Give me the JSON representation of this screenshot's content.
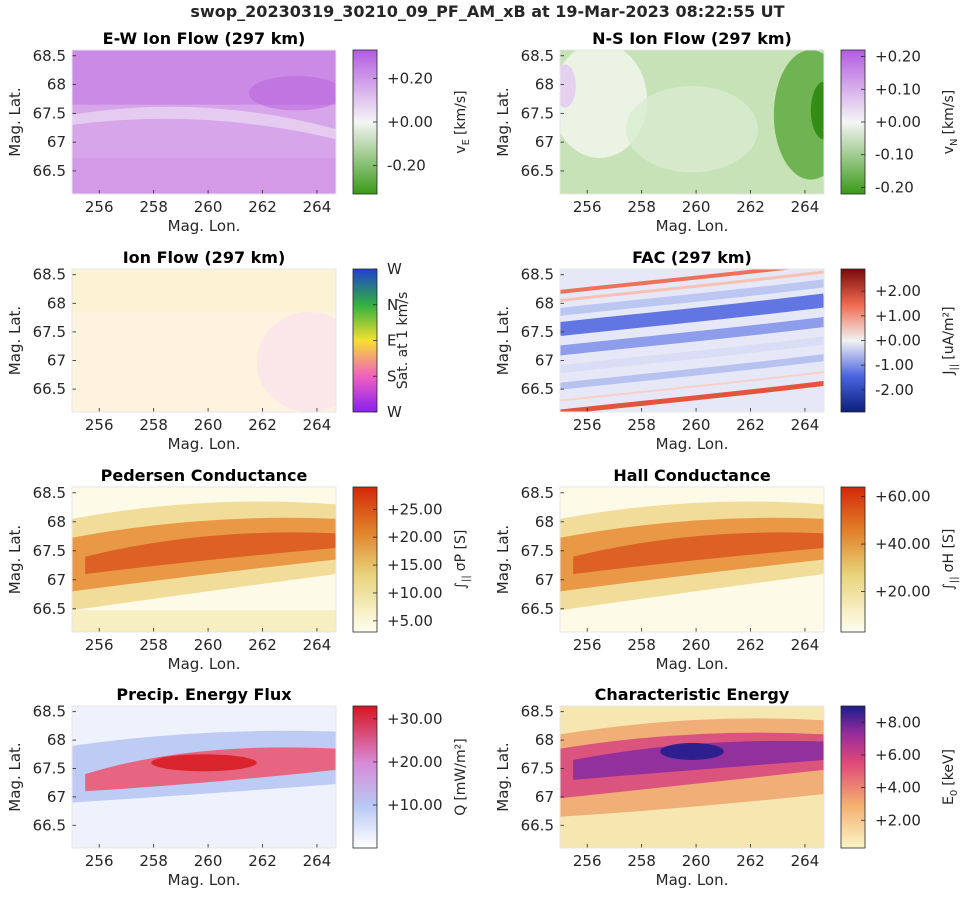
{
  "figure_title": "swop_20230319_30210_09_PF_AM_xB at 19-Mar-2023 08:22:55 UT",
  "colors": {
    "purple": "#b35ce0",
    "green": "#3a9a18",
    "red": "#d8412c",
    "blue_fac": "#2b3fc4",
    "darkred": "#7a0a0a",
    "navy": "#2a1f8a"
  },
  "chart_data": [
    {
      "type": "heatmap",
      "title": "E-W Ion Flow (297 km)",
      "xlabel": "Mag. Lon.",
      "ylabel": "Mag. Lat.",
      "xlim": [
        255,
        264.7
      ],
      "ylim": [
        66.1,
        68.6
      ],
      "xticks": [
        "256",
        "258",
        "260",
        "262",
        "264"
      ],
      "yticks": [
        "66.5",
        "67",
        "67.5",
        "68",
        "68.5"
      ],
      "colorbar": {
        "label": "v_E [km/s]",
        "label_main": "v",
        "label_sub": "E",
        "label_unit": "[km/s]",
        "ticks": [
          "-0.20",
          "+0.00",
          "+0.20"
        ],
        "range": [
          -0.33,
          0.33
        ]
      }
    },
    {
      "type": "heatmap",
      "title": "N-S Ion Flow (297 km)",
      "xlabel": "Mag. Lon.",
      "ylabel": "Mag. Lat.",
      "xlim": [
        255,
        264.7
      ],
      "ylim": [
        66.1,
        68.6
      ],
      "xticks": [
        "256",
        "258",
        "260",
        "262",
        "264"
      ],
      "yticks": [
        "66.5",
        "67",
        "67.5",
        "68",
        "68.5"
      ],
      "colorbar": {
        "label": "v_N [km/s]",
        "label_main": "v",
        "label_sub": "N",
        "label_unit": "[km/s]",
        "ticks": [
          "-0.20",
          "-0.10",
          "+0.00",
          "+0.10",
          "+0.20"
        ],
        "range": [
          -0.22,
          0.22
        ]
      }
    },
    {
      "type": "heatmap",
      "title": "Ion Flow (297 km)",
      "xlabel": "Mag. Lon.",
      "ylabel": "Mag. Lat.",
      "xlim": [
        255,
        264.7
      ],
      "ylim": [
        66.1,
        68.6
      ],
      "xticks": [
        "256",
        "258",
        "260",
        "262",
        "264"
      ],
      "yticks": [
        "66.5",
        "67",
        "67.5",
        "68",
        "68.5"
      ],
      "colorbar": {
        "label": "Sat. at 1 km/s",
        "label_main": "Sat. at 1 km/s",
        "label_sub": "",
        "label_unit": "",
        "ticks": [
          "W",
          "S",
          "E",
          "N",
          "W"
        ],
        "range": [
          0,
          4
        ]
      }
    },
    {
      "type": "heatmap",
      "title": "FAC (297 km)",
      "xlabel": "Mag. Lon.",
      "ylabel": "Mag. Lat.",
      "xlim": [
        255,
        264.7
      ],
      "ylim": [
        66.1,
        68.6
      ],
      "xticks": [
        "256",
        "258",
        "260",
        "262",
        "264"
      ],
      "yticks": [
        "66.5",
        "67",
        "67.5",
        "68",
        "68.5"
      ],
      "colorbar": {
        "label": "J_|| [uA/m^2]",
        "label_main": "J",
        "label_sub": "||",
        "label_unit": "[uA/m²]",
        "ticks": [
          "-2.00",
          "-1.00",
          "+0.00",
          "+1.00",
          "+2.00"
        ],
        "range": [
          -2.9,
          2.9
        ]
      }
    },
    {
      "type": "heatmap",
      "title": "Pedersen Conductance",
      "xlabel": "Mag. Lon.",
      "ylabel": "Mag. Lat.",
      "xlim": [
        255,
        264.7
      ],
      "ylim": [
        66.1,
        68.6
      ],
      "xticks": [
        "256",
        "258",
        "260",
        "262",
        "264"
      ],
      "yticks": [
        "66.5",
        "67",
        "67.5",
        "68",
        "68.5"
      ],
      "colorbar": {
        "label": "∫|| σP [S]",
        "label_main": "∫",
        "label_sub": "||",
        "label_unit": "σP [S]",
        "ticks": [
          "+5.00",
          "+10.00",
          "+15.00",
          "+20.00",
          "+25.00"
        ],
        "range": [
          3,
          29
        ]
      }
    },
    {
      "type": "heatmap",
      "title": "Hall Conductance",
      "xlabel": "Mag. Lon.",
      "ylabel": "Mag. Lat.",
      "xlim": [
        255,
        264.7
      ],
      "ylim": [
        66.1,
        68.6
      ],
      "xticks": [
        "256",
        "258",
        "260",
        "262",
        "264"
      ],
      "yticks": [
        "66.5",
        "67",
        "67.5",
        "68",
        "68.5"
      ],
      "colorbar": {
        "label": "∫|| σH [S]",
        "label_main": "∫",
        "label_sub": "||",
        "label_unit": "σH [S]",
        "ticks": [
          "+20.00",
          "+40.00",
          "+60.00"
        ],
        "range": [
          3,
          64
        ]
      }
    },
    {
      "type": "heatmap",
      "title": "Precip. Energy Flux",
      "xlabel": "Mag. Lon.",
      "ylabel": "Mag. Lat.",
      "xlim": [
        255,
        264.7
      ],
      "ylim": [
        66.1,
        68.6
      ],
      "xticks": [
        "256",
        "258",
        "260",
        "262",
        "264"
      ],
      "yticks": [
        "66.5",
        "67",
        "67.5",
        "68",
        "68.5"
      ],
      "colorbar": {
        "label": "Q [mW/m^2]",
        "label_main": "Q",
        "label_sub": "",
        "label_unit": "[mW/m²]",
        "ticks": [
          "+10.00",
          "+20.00",
          "+30.00"
        ],
        "range": [
          0,
          33
        ]
      }
    },
    {
      "type": "heatmap",
      "title": "Characteristic Energy",
      "xlabel": "Mag. Lon.",
      "ylabel": "Mag. Lat.",
      "xlim": [
        255,
        264.7
      ],
      "ylim": [
        66.1,
        68.6
      ],
      "xticks": [
        "256",
        "258",
        "260",
        "262",
        "264"
      ],
      "yticks": [
        "66.5",
        "67",
        "67.5",
        "68",
        "68.5"
      ],
      "colorbar": {
        "label": "E_0 [keV]",
        "label_main": "E",
        "label_sub": "0",
        "label_unit": "[keV]",
        "ticks": [
          "+2.00",
          "+4.00",
          "+6.00",
          "+8.00"
        ],
        "range": [
          0.3,
          9
        ]
      }
    }
  ]
}
